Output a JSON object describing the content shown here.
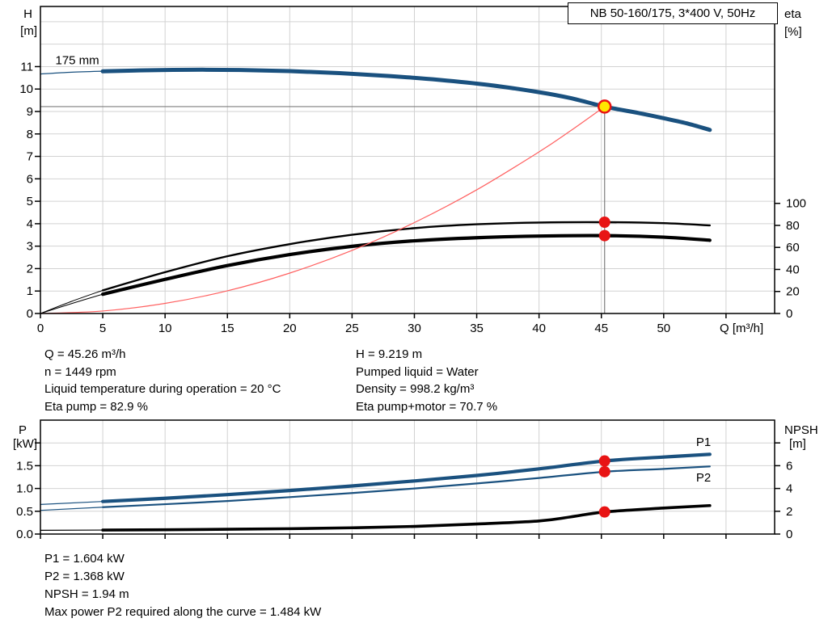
{
  "title_box": {
    "text": "NB 50-160/175, 3*400 V, 50Hz"
  },
  "info_top_left": [
    "Q = 45.26 m³/h",
    "n = 1449 rpm",
    "Liquid temperature during operation = 20 °C",
    "Eta pump = 82.9 %"
  ],
  "info_top_right": [
    "H = 9.219 m",
    "Pumped liquid = Water",
    "Density = 998.2 kg/m³",
    "Eta pump+motor = 70.7 %"
  ],
  "info_bottom": [
    "P1 = 1.604 kW",
    "P2 = 1.368 kW",
    "NPSH = 1.94 m",
    "Max power P2 required along the curve = 1.484 kW"
  ],
  "colors": {
    "curve_blue": "#1a517f",
    "label_blue": "#2d5f9e",
    "red": "#e81414",
    "system_red": "#ff6060",
    "yellow": "#ffe800",
    "grid": "#d2d2d2",
    "duty_line": "#7d7d7d",
    "black": "#000000"
  },
  "chart_data": [
    {
      "type": "line",
      "name": "qh-eta-chart",
      "title": "NB 50-160/175, 3*400 V, 50Hz",
      "frame": {
        "x0": 50,
        "x1": 958,
        "yt": 8,
        "yb": 388
      },
      "x": {
        "min": 0,
        "max": 58.9,
        "grid": [
          5,
          10,
          15,
          20,
          25,
          30,
          35,
          40,
          45,
          50,
          55
        ],
        "ticks": [
          {
            "v": 0,
            "l": "0"
          },
          {
            "v": 5,
            "l": "5"
          },
          {
            "v": 10,
            "l": "10"
          },
          {
            "v": 15,
            "l": "15"
          },
          {
            "v": 20,
            "l": "20"
          },
          {
            "v": 25,
            "l": "25"
          },
          {
            "v": 30,
            "l": "30"
          },
          {
            "v": 35,
            "l": "35"
          },
          {
            "v": 40,
            "l": "40"
          },
          {
            "v": 45,
            "l": "45"
          },
          {
            "v": 50,
            "l": "50"
          },
          {
            "v": 55
          }
        ],
        "tick_label_y": 411,
        "label": {
          "text": "Q [m³/h]",
          "x": 890,
          "y": 411
        }
      },
      "left": {
        "min": 0,
        "max": 13.68,
        "grid": [
          1,
          2,
          3,
          4,
          5,
          6,
          7,
          8,
          9,
          10,
          11,
          12,
          13
        ],
        "ticks": [
          {
            "v": 0,
            "l": "0"
          },
          {
            "v": 1,
            "l": "1"
          },
          {
            "v": 2,
            "l": "2"
          },
          {
            "v": 3,
            "l": "3"
          },
          {
            "v": 4,
            "l": "4"
          },
          {
            "v": 5,
            "l": "5"
          },
          {
            "v": 6,
            "l": "6"
          },
          {
            "v": 7,
            "l": "7"
          },
          {
            "v": 8,
            "l": "8"
          },
          {
            "v": 9,
            "l": "9"
          },
          {
            "v": 10,
            "l": "10"
          },
          {
            "v": 11,
            "l": "11"
          }
        ],
        "titles": [
          {
            "text": "H",
            "x": 40,
            "y": 22,
            "anchor": "end"
          },
          {
            "text": "[m]",
            "x": 46,
            "y": 43,
            "anchor": "end"
          }
        ]
      },
      "right": {
        "min": 0,
        "max": 278.8,
        "ticks": [
          {
            "v": 0,
            "l": "0"
          },
          {
            "v": 20,
            "l": "20"
          },
          {
            "v": 40,
            "l": "40"
          },
          {
            "v": 60,
            "l": "60"
          },
          {
            "v": 80,
            "l": "80"
          },
          {
            "v": 100,
            "l": "100"
          }
        ],
        "titles": [
          {
            "text": "eta",
            "x": 970,
            "y": 22,
            "anchor": "start"
          },
          {
            "text": "[%]",
            "x": 970,
            "y": 44,
            "anchor": "start"
          }
        ]
      },
      "lines": [
        {
          "name": "duty-head-line",
          "axis": "left",
          "color": "duty_line",
          "width": 1.2,
          "from": [
            0,
            9.219
          ],
          "to": [
            45.26,
            9.219
          ]
        },
        {
          "name": "duty-flow-line",
          "axis": "left",
          "color": "duty_line",
          "width": 1.2,
          "from": [
            45.26,
            0
          ],
          "to": [
            45.26,
            9.219
          ]
        }
      ],
      "series": [
        {
          "name": "pump-curve-175mm-thin",
          "axis": "left",
          "color": "curve_blue",
          "width": 1.3,
          "points": [
            [
              0,
              10.67
            ],
            [
              2.5,
              10.75
            ],
            [
              5.2,
              10.8
            ]
          ]
        },
        {
          "name": "pump-curve-175mm",
          "axis": "left",
          "color": "curve_blue",
          "width": 5,
          "points": [
            [
              5,
              10.79
            ],
            [
              8,
              10.83
            ],
            [
              12,
              10.86
            ],
            [
              16,
              10.85
            ],
            [
              20,
              10.8
            ],
            [
              24,
              10.71
            ],
            [
              28,
              10.58
            ],
            [
              32,
              10.41
            ],
            [
              36,
              10.18
            ],
            [
              40,
              9.86
            ],
            [
              42.5,
              9.6
            ],
            [
              45.26,
              9.219
            ],
            [
              48,
              8.93
            ],
            [
              50,
              8.7
            ],
            [
              52,
              8.45
            ],
            [
              53.7,
              8.18
            ]
          ]
        },
        {
          "name": "eta-pump-curve-thin",
          "axis": "right",
          "color": "black",
          "width": 1,
          "points": [
            [
              0,
              0
            ],
            [
              2.5,
              11
            ],
            [
              5,
              21
            ]
          ]
        },
        {
          "name": "eta-pump-curve",
          "axis": "right",
          "color": "black",
          "width": 2.4,
          "points": [
            [
              5,
              21
            ],
            [
              10,
              37.5
            ],
            [
              15,
              52
            ],
            [
              20,
              63
            ],
            [
              25,
              71.5
            ],
            [
              30,
              77.5
            ],
            [
              35,
              81
            ],
            [
              40,
              82.6
            ],
            [
              45.26,
              82.9
            ],
            [
              50,
              82
            ],
            [
              53.7,
              80
            ]
          ]
        },
        {
          "name": "eta-pump-motor-curve-thin",
          "axis": "right",
          "color": "black",
          "width": 1,
          "points": [
            [
              0,
              0
            ],
            [
              2.5,
              9
            ],
            [
              5,
              17.5
            ]
          ]
        },
        {
          "name": "eta-pump-motor-curve",
          "axis": "right",
          "color": "black",
          "width": 4.2,
          "points": [
            [
              5,
              17.5
            ],
            [
              10,
              31
            ],
            [
              15,
              43.5
            ],
            [
              20,
              53.5
            ],
            [
              25,
              61
            ],
            [
              30,
              66
            ],
            [
              35,
              68.8
            ],
            [
              40,
              70.3
            ],
            [
              45.26,
              70.7
            ],
            [
              50,
              69.3
            ],
            [
              53.7,
              66.5
            ]
          ]
        },
        {
          "name": "system-curve",
          "axis": "left",
          "color": "system_red",
          "width": 1.2,
          "points": [
            [
              0,
              0
            ],
            [
              5,
              0.11
            ],
            [
              10,
              0.45
            ],
            [
              15,
              1.01
            ],
            [
              20,
              1.8
            ],
            [
              25,
              2.81
            ],
            [
              30,
              4.05
            ],
            [
              35,
              5.51
            ],
            [
              40,
              7.2
            ],
            [
              42.5,
              8.13
            ],
            [
              45.26,
              9.219
            ]
          ]
        }
      ],
      "markers": [
        {
          "name": "duty-point",
          "axis": "left",
          "x": 45.26,
          "y": 9.219,
          "r": 7.5,
          "fill": "yellow",
          "stroke": "red",
          "sw": 2.5,
          "interactable": true
        },
        {
          "name": "eta-pump-point",
          "axis": "right",
          "x": 45.26,
          "y": 82.9,
          "r": 7,
          "fill": "red"
        },
        {
          "name": "eta-pump-motor-point",
          "axis": "right",
          "x": 45.26,
          "y": 70.7,
          "r": 7,
          "fill": "red"
        }
      ],
      "texts": [
        {
          "name": "impeller-diameter-label",
          "text": "175 mm",
          "axis": "left",
          "x": 1.2,
          "y": 11.1,
          "color": "black",
          "anchor": "start"
        }
      ]
    },
    {
      "type": "line",
      "name": "power-npsh-chart",
      "frame": {
        "x0": 50,
        "x1": 958,
        "yt": 520,
        "yb": 661
      },
      "x": {
        "min": 0,
        "max": 58.9,
        "grid": [
          5,
          10,
          15,
          20,
          25,
          30,
          35,
          40,
          45,
          50,
          55
        ],
        "ticks": [
          {
            "v": 0
          },
          {
            "v": 5
          },
          {
            "v": 10
          },
          {
            "v": 15
          },
          {
            "v": 20
          },
          {
            "v": 25
          },
          {
            "v": 30
          },
          {
            "v": 35
          },
          {
            "v": 40
          },
          {
            "v": 45
          },
          {
            "v": 50
          },
          {
            "v": 55
          }
        ],
        "tick_label_y": null,
        "label": null
      },
      "left": {
        "min": 0,
        "max": 2.5,
        "grid": [
          0.5,
          1.0,
          1.5,
          2.0
        ],
        "ticks": [
          {
            "v": 0,
            "l": "0.0"
          },
          {
            "v": 0.5,
            "l": "0.5"
          },
          {
            "v": 1.0,
            "l": "1.0"
          },
          {
            "v": 1.5,
            "l": "1.5"
          },
          {
            "v": 2.0
          }
        ],
        "titles": [
          {
            "text": "P",
            "x": 33,
            "y": 537,
            "anchor": "end"
          },
          {
            "text": "[kW]",
            "x": 46,
            "y": 554,
            "anchor": "end"
          }
        ]
      },
      "right": {
        "min": 0,
        "max": 10,
        "ticks": [
          {
            "v": 0,
            "l": "0"
          },
          {
            "v": 2,
            "l": "2"
          },
          {
            "v": 4,
            "l": "4"
          },
          {
            "v": 6,
            "l": "6"
          },
          {
            "v": 8
          }
        ],
        "titles": [
          {
            "text": "NPSH",
            "x": 970,
            "y": 537,
            "anchor": "start"
          },
          {
            "text": "[m]",
            "x": 976,
            "y": 554,
            "anchor": "start"
          }
        ]
      },
      "lines": [],
      "series": [
        {
          "name": "p1-curve-thin",
          "axis": "left",
          "color": "curve_blue",
          "width": 1.2,
          "points": [
            [
              0,
              0.65
            ],
            [
              5,
              0.715
            ]
          ]
        },
        {
          "name": "p1-curve",
          "axis": "left",
          "color": "curve_blue",
          "width": 4.2,
          "points": [
            [
              5,
              0.715
            ],
            [
              10,
              0.785
            ],
            [
              15,
              0.865
            ],
            [
              20,
              0.955
            ],
            [
              25,
              1.055
            ],
            [
              30,
              1.165
            ],
            [
              35,
              1.285
            ],
            [
              40,
              1.43
            ],
            [
              45.26,
              1.604
            ],
            [
              50,
              1.69
            ],
            [
              53.7,
              1.75
            ]
          ]
        },
        {
          "name": "p2-curve-thin",
          "axis": "left",
          "color": "curve_blue",
          "width": 1.2,
          "points": [
            [
              0,
              0.52
            ],
            [
              5,
              0.59
            ]
          ]
        },
        {
          "name": "p2-curve",
          "axis": "left",
          "color": "curve_blue",
          "width": 2.2,
          "points": [
            [
              5,
              0.59
            ],
            [
              10,
              0.655
            ],
            [
              15,
              0.725
            ],
            [
              20,
              0.81
            ],
            [
              25,
              0.9
            ],
            [
              30,
              1.0
            ],
            [
              35,
              1.11
            ],
            [
              40,
              1.23
            ],
            [
              45.26,
              1.368
            ],
            [
              50,
              1.43
            ],
            [
              53.7,
              1.484
            ]
          ]
        },
        {
          "name": "npsh-curve-thin",
          "axis": "right",
          "color": "black",
          "width": 1.2,
          "points": [
            [
              0,
              0.33
            ],
            [
              5,
              0.35
            ]
          ]
        },
        {
          "name": "npsh-curve",
          "axis": "right",
          "color": "black",
          "width": 3.6,
          "points": [
            [
              5,
              0.35
            ],
            [
              10,
              0.38
            ],
            [
              15,
              0.42
            ],
            [
              20,
              0.47
            ],
            [
              25,
              0.55
            ],
            [
              30,
              0.67
            ],
            [
              35,
              0.88
            ],
            [
              40,
              1.15
            ],
            [
              42.5,
              1.5
            ],
            [
              45.26,
              1.94
            ],
            [
              50,
              2.28
            ],
            [
              53.7,
              2.5
            ]
          ]
        }
      ],
      "markers": [
        {
          "name": "p1-point",
          "axis": "left",
          "x": 45.26,
          "y": 1.604,
          "r": 7,
          "fill": "red"
        },
        {
          "name": "p2-point",
          "axis": "left",
          "x": 45.26,
          "y": 1.368,
          "r": 7,
          "fill": "red"
        },
        {
          "name": "npsh-point",
          "axis": "right",
          "x": 45.26,
          "y": 1.94,
          "r": 7,
          "fill": "red"
        }
      ],
      "texts": [
        {
          "name": "p1-curve-label",
          "text": "P1",
          "axis": "left",
          "x": 52.6,
          "y": 1.93,
          "color": "label_blue",
          "anchor": "start"
        },
        {
          "name": "p2-curve-label",
          "text": "P2",
          "axis": "left",
          "x": 52.6,
          "y": 1.15,
          "color": "label_blue",
          "anchor": "start"
        }
      ]
    }
  ]
}
